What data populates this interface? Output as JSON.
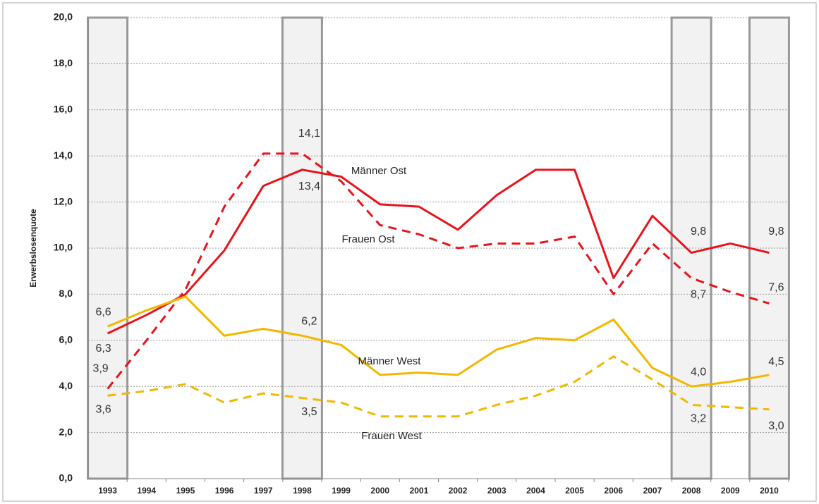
{
  "chart_data": {
    "type": "line",
    "y_label": "Erwerbslosenquote",
    "categories": [
      "1993",
      "1994",
      "1995",
      "1996",
      "1997",
      "1998",
      "1999",
      "2000",
      "2001",
      "2002",
      "2003",
      "2004",
      "2005",
      "2006",
      "2007",
      "2008",
      "2009",
      "2010"
    ],
    "highlighted": [
      "1993",
      "1998",
      "2008",
      "2010"
    ],
    "ylim": [
      0,
      20
    ],
    "yticks": [
      {
        "value": 0,
        "label": "0,0"
      },
      {
        "value": 2,
        "label": "2,0"
      },
      {
        "value": 4,
        "label": "4,0"
      },
      {
        "value": 6,
        "label": "6,0"
      },
      {
        "value": 8,
        "label": "8,0"
      },
      {
        "value": 10,
        "label": "10,0"
      },
      {
        "value": 12,
        "label": "12,0"
      },
      {
        "value": 14,
        "label": "14,0"
      },
      {
        "value": 16,
        "label": "16,0"
      },
      {
        "value": 18,
        "label": "18,0"
      },
      {
        "value": 20,
        "label": "20,0"
      }
    ],
    "grid": true,
    "series": [
      {
        "name": "Männer Ost",
        "color": "#e8141b",
        "dashed": false,
        "values": [
          6.3,
          7.1,
          8.0,
          9.9,
          12.7,
          13.4,
          13.1,
          11.9,
          11.8,
          10.8,
          12.3,
          13.4,
          13.4,
          8.7,
          11.4,
          9.8,
          10.2,
          9.8
        ],
        "value_labels": [
          "6,3",
          null,
          null,
          null,
          null,
          "13,4",
          null,
          null,
          null,
          null,
          null,
          null,
          null,
          null,
          null,
          "9,8",
          null,
          "9,8"
        ]
      },
      {
        "name": "Frauen Ost",
        "color": "#e8141b",
        "dashed": true,
        "values": [
          3.9,
          6.0,
          8.2,
          11.8,
          14.1,
          14.1,
          12.9,
          11.0,
          10.6,
          10.0,
          10.2,
          10.2,
          10.5,
          8.0,
          10.2,
          8.7,
          8.1,
          7.6
        ],
        "value_labels": [
          "3,9",
          null,
          null,
          null,
          null,
          "14,1",
          null,
          null,
          null,
          null,
          null,
          null,
          null,
          null,
          null,
          "8,7",
          null,
          "7,6"
        ]
      },
      {
        "name": "Männer West",
        "color": "#f2b800",
        "dashed": false,
        "values": [
          6.6,
          7.3,
          7.9,
          6.2,
          6.5,
          6.2,
          5.8,
          4.5,
          4.6,
          4.5,
          5.6,
          6.1,
          6.0,
          6.9,
          4.8,
          4.0,
          4.2,
          4.5
        ],
        "value_labels": [
          "6,6",
          null,
          null,
          null,
          null,
          "6,2",
          null,
          null,
          null,
          null,
          null,
          null,
          null,
          null,
          null,
          "4,0",
          null,
          "4,5"
        ]
      },
      {
        "name": "Frauen West",
        "color": "#f2b800",
        "dashed": true,
        "values": [
          3.6,
          3.8,
          4.1,
          3.3,
          3.7,
          3.5,
          3.3,
          2.7,
          2.7,
          2.7,
          3.2,
          3.6,
          4.2,
          5.3,
          4.3,
          3.2,
          3.1,
          3.0
        ],
        "value_labels": [
          "3,6",
          null,
          null,
          null,
          null,
          "3,5",
          null,
          null,
          null,
          null,
          null,
          null,
          null,
          null,
          null,
          "3,2",
          null,
          "3,0"
        ]
      }
    ]
  }
}
